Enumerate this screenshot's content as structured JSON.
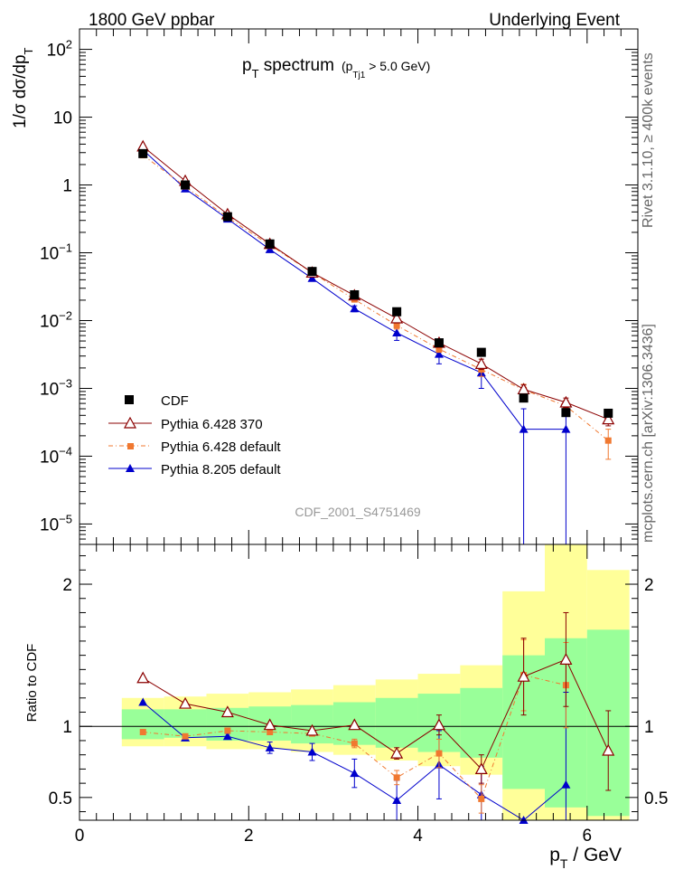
{
  "header": {
    "left": "1800 GeV ppbar",
    "right": "Underlying Event"
  },
  "side_labels": {
    "top": "Rivet 3.1.10, ≥ 400k events",
    "bottom": "mcplots.cern.ch [arXiv:1306.3436]"
  },
  "watermark": "CDF_2001_S4751469",
  "colors": {
    "cdf": "#000000",
    "py6_370": "#8b0000",
    "py6_default": "#f07830",
    "py8_default": "#0000cc",
    "band_inner": "#99ff99",
    "band_outer": "#ffff99"
  },
  "chart_data": [
    {
      "type": "line",
      "title_main": "p",
      "title_sub": "T",
      "title_rest": " spectrum",
      "title_cut_pre": "(p",
      "title_cut_sub": "Tj1",
      "title_cut_post": " > 5.0 GeV)",
      "ylabel": "1/σ dσ/dp",
      "ylabel_sub": "T",
      "yscale": "log",
      "ylim": [
        5e-06,
        200
      ],
      "xlim": [
        0,
        6.6
      ],
      "yticks": [
        {
          "value": 1e-05,
          "base": "10",
          "exp": "−5"
        },
        {
          "value": 0.0001,
          "base": "10",
          "exp": "−4"
        },
        {
          "value": 0.001,
          "base": "10",
          "exp": "−3"
        },
        {
          "value": 0.01,
          "base": "10",
          "exp": "−2"
        },
        {
          "value": 0.1,
          "base": "10",
          "exp": "−1"
        },
        {
          "value": 1,
          "base": "1",
          "exp": ""
        },
        {
          "value": 10,
          "base": "10",
          "exp": ""
        },
        {
          "value": 100,
          "base": "10",
          "exp": "2"
        }
      ],
      "x": [
        0.75,
        1.25,
        1.75,
        2.25,
        2.75,
        3.25,
        3.75,
        4.25,
        4.75,
        5.25,
        5.75,
        6.25
      ],
      "series": [
        {
          "name": "CDF",
          "style": "cdf",
          "values": [
            2.9,
            1.0,
            0.34,
            0.135,
            0.053,
            0.024,
            0.0135,
            0.0047,
            0.0034,
            0.00072,
            0.00044,
            0.00043
          ]
        },
        {
          "name": "Pythia 6.428 370",
          "style": "py6_370",
          "values": [
            3.7,
            1.15,
            0.37,
            0.135,
            0.051,
            0.0235,
            0.0108,
            0.0047,
            0.0023,
            0.00097,
            0.00062,
            0.00035
          ],
          "errors": [
            0,
            0,
            0,
            0,
            0,
            0,
            0.001,
            0.0004,
            0.0004,
            0.00015,
            0.0001,
            7e-05
          ]
        },
        {
          "name": "Pythia 6.428 default",
          "style": "py6_default",
          "values": [
            2.75,
            0.95,
            0.33,
            0.13,
            0.051,
            0.0205,
            0.0085,
            0.0038,
            0.0019,
            0.00095,
            0.00055,
            0.00017
          ],
          "errors": [
            0,
            0,
            0,
            0,
            0,
            0,
            0.001,
            0.0004,
            0.0004,
            0.0002,
            0.00012,
            8e-05
          ]
        },
        {
          "name": "Pythia 8.205 default",
          "style": "py8_default",
          "values": [
            3.3,
            0.88,
            0.315,
            0.112,
            0.042,
            0.015,
            0.0066,
            0.0032,
            0.0017,
            0.00025,
            0.00025,
            null
          ],
          "errors": [
            0,
            0,
            0,
            0,
            0,
            0.0015,
            0.0015,
            0.0009,
            0.0007,
            0.00025,
            0.00025,
            0
          ]
        }
      ],
      "legend": [
        "CDF",
        "Pythia 6.428 370",
        "Pythia 6.428 default",
        "Pythia 8.205 default"
      ]
    },
    {
      "type": "line",
      "ylabel": "Ratio to CDF",
      "xlabel_main": "p",
      "xlabel_sub": "T",
      "xlabel_rest": " / GeV",
      "ylim": [
        0.34,
        2.28
      ],
      "xlim": [
        0,
        6.6
      ],
      "yticks": [
        0.5,
        1,
        2
      ],
      "ytick_labels": [
        "0.5",
        "1",
        "2"
      ],
      "xticks": [
        0,
        2,
        4,
        6
      ],
      "xtick_labels": [
        "0",
        "2",
        "4",
        "6"
      ],
      "band_edges": [
        0.5,
        1.0,
        1.5,
        2.0,
        2.5,
        3.0,
        3.5,
        4.0,
        4.5,
        5.0,
        5.5,
        6.0,
        6.5
      ],
      "band_inner": [
        [
          0.91,
          1.12
        ],
        [
          0.92,
          1.12
        ],
        [
          0.9,
          1.13
        ],
        [
          0.9,
          1.14
        ],
        [
          0.88,
          1.15
        ],
        [
          0.87,
          1.17
        ],
        [
          0.85,
          1.2
        ],
        [
          0.82,
          1.23
        ],
        [
          0.78,
          1.27
        ],
        [
          0.56,
          1.5
        ],
        [
          0.43,
          1.62
        ],
        [
          0.37,
          1.68
        ]
      ],
      "band_outer": [
        [
          0.86,
          1.2
        ],
        [
          0.86,
          1.21
        ],
        [
          0.84,
          1.23
        ],
        [
          0.84,
          1.24
        ],
        [
          0.82,
          1.26
        ],
        [
          0.8,
          1.29
        ],
        [
          0.76,
          1.33
        ],
        [
          0.72,
          1.37
        ],
        [
          0.66,
          1.43
        ],
        [
          0.34,
          1.95
        ],
        [
          0.34,
          2.28
        ],
        [
          0.34,
          2.1
        ]
      ],
      "x": [
        0.75,
        1.25,
        1.75,
        2.25,
        2.75,
        3.25,
        3.75,
        4.25,
        4.75,
        5.25,
        5.75,
        6.25
      ],
      "series": [
        {
          "name": "Pythia 6.428 370",
          "style": "py6_370",
          "values": [
            1.34,
            1.16,
            1.1,
            1.01,
            0.97,
            1.01,
            0.81,
            1.01,
            0.7,
            1.35,
            1.47,
            0.83
          ],
          "errors": [
            0,
            0,
            0,
            0,
            0,
            0,
            0.04,
            0.07,
            0.1,
            0.27,
            0.33,
            0.28
          ]
        },
        {
          "name": "Pythia 6.428 default",
          "style": "py6_default",
          "values": [
            0.96,
            0.93,
            0.97,
            0.96,
            0.95,
            0.88,
            0.64,
            0.81,
            0.49,
            1.36,
            1.29,
            null
          ],
          "errors": [
            0,
            0,
            0,
            0,
            0,
            0.03,
            0.05,
            0.1,
            0.1,
            0.25,
            0.3,
            0
          ]
        },
        {
          "name": "Pythia 8.205 default",
          "style": "py8_default",
          "values": [
            1.17,
            0.92,
            0.93,
            0.85,
            0.82,
            0.67,
            0.48,
            0.73,
            0.52,
            0.34,
            0.59,
            null
          ],
          "errors": [
            0,
            0,
            0.02,
            0.04,
            0.06,
            0.1,
            0.14,
            0.24,
            0.2,
            0,
            0.65,
            0
          ]
        }
      ]
    }
  ]
}
